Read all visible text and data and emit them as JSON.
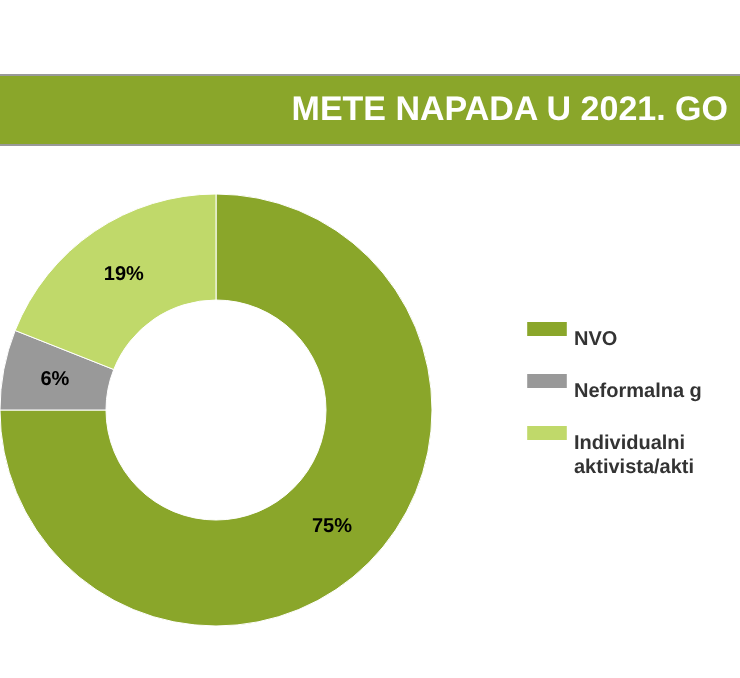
{
  "chart_data": {
    "type": "donut",
    "title": "METE NAPADA U 2021. GO",
    "categories": [
      "NVO",
      "Neformalna g",
      "Individualni aktivista/akti"
    ],
    "values": [
      75,
      6,
      19
    ],
    "value_labels": [
      "75%",
      "6%",
      "19%"
    ],
    "colors": [
      "#8aa62a",
      "#999999",
      "#c0d96a"
    ],
    "legend": "right"
  }
}
